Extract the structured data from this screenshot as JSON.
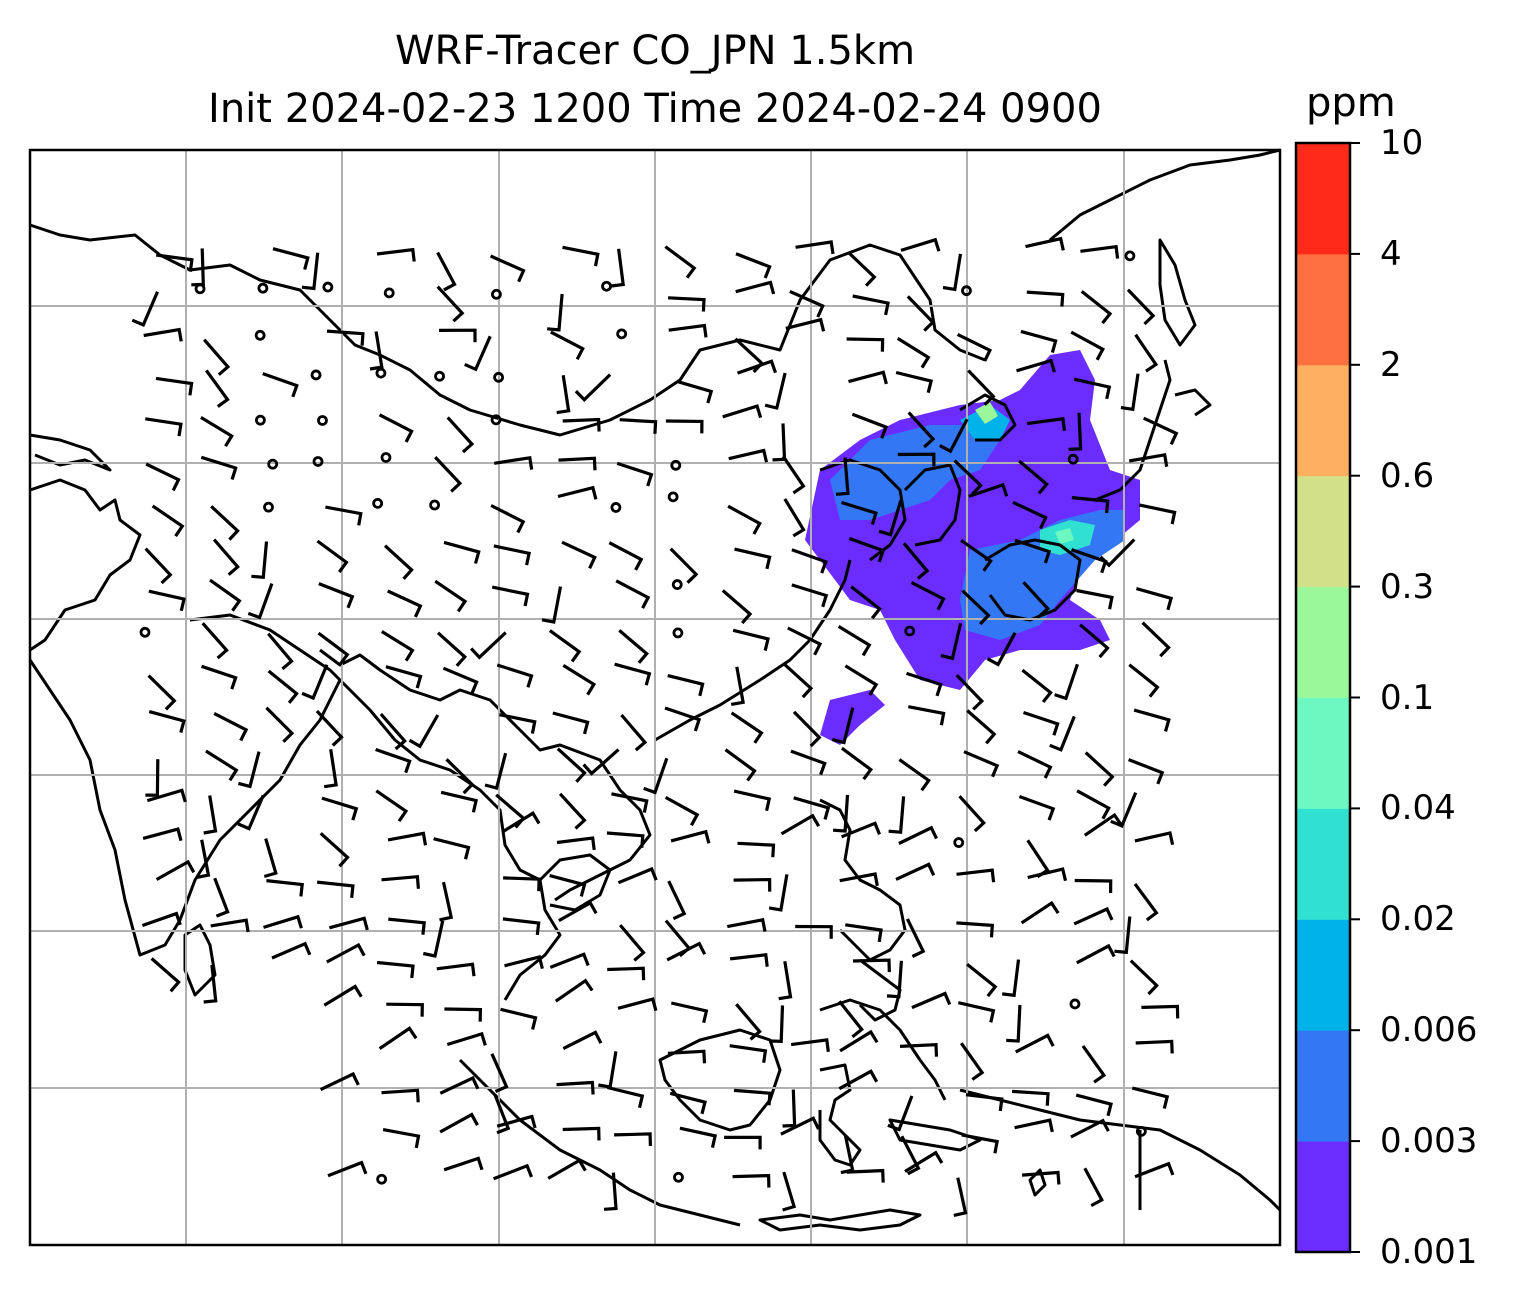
{
  "figure": {
    "title_line1": "WRF-Tracer CO_JPN 1.5km",
    "title_line2": "Init 2024-02-23 1200 Time 2024-02-24 0900"
  },
  "colorbar": {
    "unit": "ppm",
    "levels": [
      "0.001",
      "0.003",
      "0.006",
      "0.02",
      "0.04",
      "0.1",
      "0.3",
      "0.6",
      "2",
      "4",
      "10"
    ],
    "colors": [
      "#6a2cff",
      "#3377f5",
      "#00b2ea",
      "#30e0d0",
      "#6cf8c0",
      "#9af89a",
      "#d2e08a",
      "#ffaf60",
      "#ff7040",
      "#ff2a1a"
    ]
  },
  "map": {
    "background": "#ffffff",
    "coastline_color": "#000000",
    "gridline_color": "#b0b0b0",
    "barb_color": "#000000"
  }
}
